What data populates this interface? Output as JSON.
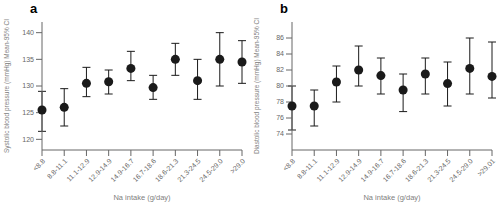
{
  "chart_data": [
    {
      "type": "scatter",
      "title": "a",
      "categories": [
        "<8.8",
        "8.8-11.1",
        "11.1-12.9",
        "12.9-14.9",
        "14.9-16.7",
        "16.7-18.6",
        "18.6-21.3",
        "21.3-24.5",
        "24.5-29.0",
        ">29.0"
      ],
      "values": [
        125.5,
        126.0,
        130.5,
        130.8,
        133.3,
        129.7,
        135.0,
        131.0,
        135.0,
        134.5
      ],
      "lowers": [
        121.5,
        122.5,
        128.0,
        128.5,
        131.0,
        127.5,
        132.0,
        127.5,
        130.0,
        130.5
      ],
      "uppers": [
        129.0,
        129.5,
        133.5,
        133.0,
        136.5,
        132.0,
        138.0,
        135.0,
        140.0,
        138.5
      ],
      "color": "#1a1a1a",
      "marker": "circle",
      "xlabel": "Na intake (g/day)",
      "ylabel": "Systolic blood pressure (mmHg) Mean-95% CI",
      "ylim": [
        118,
        142
      ],
      "yticks": [
        120,
        125,
        130,
        135,
        140
      ],
      "grid": false
    },
    {
      "type": "scatter",
      "title": "b",
      "categories": [
        "<8.8",
        "8.8-11.1",
        "11.1-12.9",
        "12.9-14.9",
        "14.9-16.7",
        "16.7-18.6",
        "18.6-21.3",
        "21.3-24.5",
        "24.5-29.0",
        ">29.01"
      ],
      "values": [
        77.5,
        77.5,
        80.5,
        82.0,
        81.3,
        79.5,
        81.5,
        80.3,
        82.2,
        81.2
      ],
      "lowers": [
        74.5,
        75.0,
        78.0,
        80.0,
        79.0,
        76.8,
        79.0,
        77.5,
        79.0,
        78.5
      ],
      "uppers": [
        80.0,
        79.5,
        82.5,
        85.0,
        83.5,
        81.5,
        83.5,
        83.0,
        86.0,
        85.5
      ],
      "color": "#1a1a1a",
      "marker": "circle",
      "xlabel": "Na intake (g/day)",
      "ylabel": "Diastolic blood pressure (mmHg) Mean-95% CI",
      "ylim": [
        72,
        88
      ],
      "yticks": [
        74,
        76,
        78,
        80,
        82,
        84,
        86
      ],
      "grid": false
    }
  ]
}
